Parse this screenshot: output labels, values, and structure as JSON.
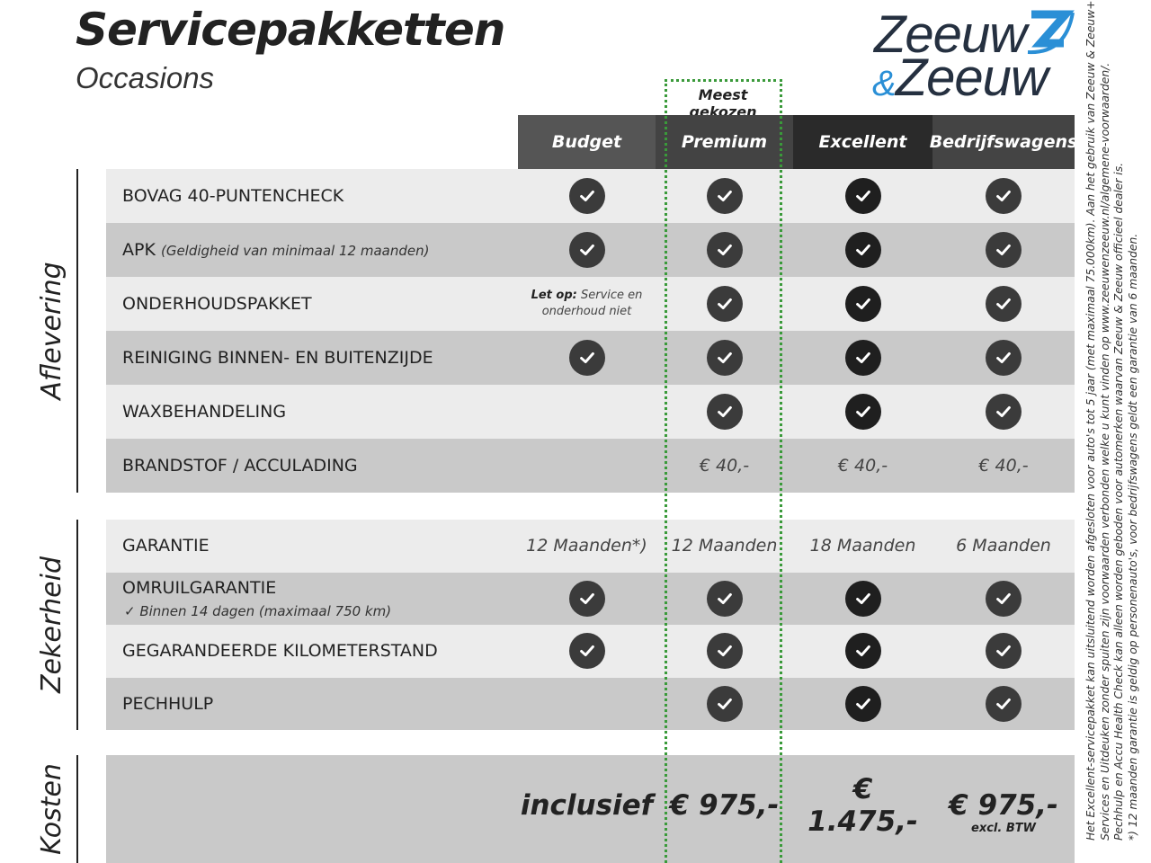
{
  "header": {
    "title": "Servicepakketten",
    "subtitle": "Occasions",
    "logo_text": "Zeeuw & Zeeuw"
  },
  "highlight_label": "Meest gekozen",
  "colors": {
    "highlight": "#3a9a3a",
    "logo_blue": "#2a8fd6",
    "row_light": "#ececec",
    "row_dark": "#c9c9c9"
  },
  "columns": [
    {
      "label": "Budget",
      "bg": "#555555"
    },
    {
      "label": "Premium",
      "bg": "#434343"
    },
    {
      "label": "Excellent",
      "bg": "#2a2a2a"
    },
    {
      "label": "Bedrijfswagens",
      "bg": "#444444"
    }
  ],
  "sections": [
    {
      "label": "Aflevering",
      "rows": [
        {
          "label": "BOVAG 40-PUNTENCHECK",
          "cells": [
            "check",
            "check",
            "check",
            "check"
          ]
        },
        {
          "label": "APK",
          "note": "(Geldigheid van minimaal 12 maanden)",
          "cells": [
            "check",
            "check",
            "check",
            "check"
          ]
        },
        {
          "label": "ONDERHOUDSPAKKET",
          "cells": [
            "letop",
            "check",
            "check",
            "check"
          ]
        },
        {
          "label": "REINIGING BINNEN- EN BUITENZIJDE",
          "cells": [
            "check",
            "check",
            "check",
            "check"
          ]
        },
        {
          "label": "WAXBEHANDELING",
          "cells": [
            "",
            "check",
            "check",
            "check"
          ]
        },
        {
          "label": "BRANDSTOF / ACCULADING",
          "cells": [
            "",
            "€ 40,-",
            "€ 40,-",
            "€ 40,-"
          ]
        }
      ]
    },
    {
      "label": "Zekerheid",
      "rows": [
        {
          "label": "GARANTIE",
          "cells": [
            "12 Maanden*)",
            "12 Maanden",
            "18 Maanden",
            "6 Maanden"
          ]
        },
        {
          "label": "OMRUILGARANTIE",
          "sub": "✓   Binnen 14 dagen (maximaal 750 km)",
          "cells": [
            "check",
            "check",
            "check",
            "check"
          ]
        },
        {
          "label": "GEGARANDEERDE KILOMETERSTAND",
          "cells": [
            "check",
            "check",
            "check",
            "check"
          ]
        },
        {
          "label": "PECHHULP",
          "cells": [
            "",
            "check",
            "check",
            "check"
          ]
        }
      ]
    },
    {
      "label": "Kosten",
      "prices": [
        "inclusief",
        "€ 975,-",
        "€ 1.475,-",
        "€ 975,-"
      ],
      "price_note": "excl. BTW"
    }
  ],
  "letop": {
    "bold": "Let op:",
    "text": " Service en onderhoud niet"
  },
  "footnotes": [
    "Het Excellent-servicepakket kan uitsluitend worden afgesloten voor auto's tot 5 jaar (met maximaal 75.000km). Aan het gebruik van Zeeuw & Zeeuw+",
    "Services en Uitdeuken zonder spuiten zijn voorwaarden verbonden welke u kunt vinden op www.zeeuwenzeeuw.nl/algemene-voorwaarden/.",
    "Pechhulp en Accu Health Check kan alleen worden geboden voor automerken waarvan Zeeuw & Zeeuw officieel dealer is.",
    "*) 12 maanden garantie is geldig op personenauto's, voor bedrijfswagens geldt een garantie van 6 maanden."
  ]
}
